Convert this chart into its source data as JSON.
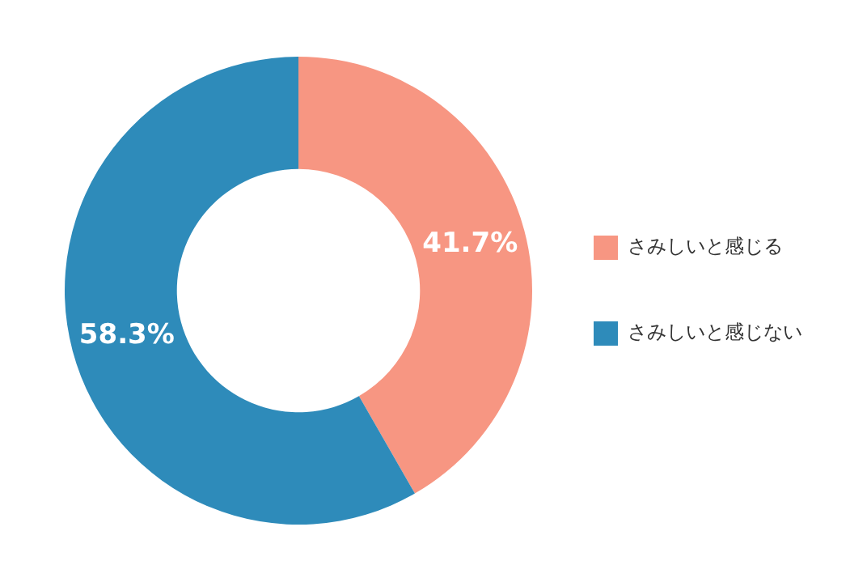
{
  "chart_data": {
    "type": "donut",
    "categories": [
      "さみしいと感じる",
      "さみしいと感じない"
    ],
    "values": [
      41.7,
      58.3
    ],
    "colors": [
      "#f79682",
      "#2e8bba"
    ],
    "value_labels": [
      "41.7%",
      "58.3%"
    ],
    "legend": "right"
  }
}
